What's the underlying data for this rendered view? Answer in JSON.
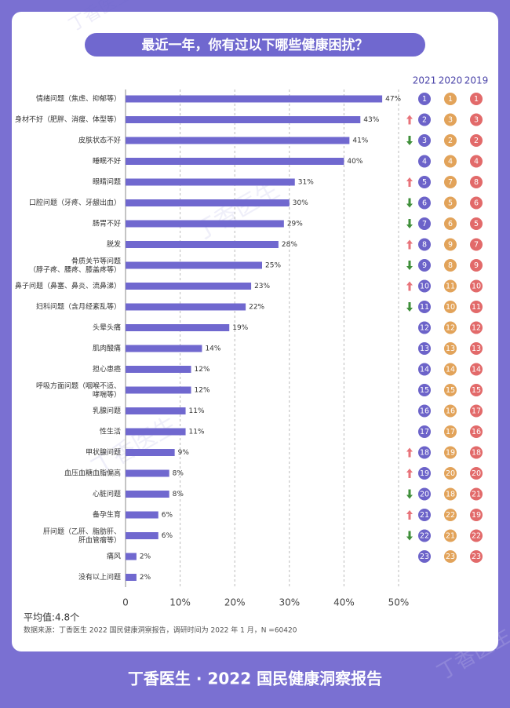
{
  "chart_data": {
    "type": "bar",
    "title": "最近一年，你有过以下哪些健康困扰？",
    "categories": [
      "情绪问题（焦虑、抑郁等）",
      "身材不好（肥胖、消瘦、体型等）",
      "皮肤状态不好",
      "睡眠不好",
      "眼睛问题",
      "口腔问题（牙疼、牙龈出血）",
      "肠胃不好",
      "脱发",
      "骨质关节等问题\n（脖子疼、腰疼、膝盖疼等）",
      "鼻子问题（鼻塞、鼻炎、流鼻涕）",
      "妇科问题（含月经紊乱等）",
      "头晕头痛",
      "肌肉酸痛",
      "担心患癌",
      "呼吸方面问题（咽喉不适、\n哮喘等）",
      "乳腺问题",
      "性生活",
      "甲状腺问题",
      "血压血糖血脂偏高",
      "心脏问题",
      "备孕生育",
      "肝问题（乙肝、脂肪肝、\n肝血管瘤等）",
      "痛风",
      "没有以上问题"
    ],
    "values": [
      47,
      43,
      41,
      40,
      31,
      30,
      29,
      28,
      25,
      23,
      22,
      19,
      14,
      12,
      12,
      11,
      11,
      9,
      8,
      8,
      6,
      6,
      2,
      2
    ],
    "value_labels": [
      "47%",
      "43%",
      "41%",
      "40%",
      "31%",
      "30%",
      "29%",
      "28%",
      "25%",
      "23%",
      "22%",
      "19%",
      "14%",
      "12%",
      "12%",
      "11%",
      "11%",
      "9%",
      "8%",
      "8%",
      "6%",
      "6%",
      "2%",
      "2%"
    ],
    "color": "#7068cf",
    "xlim": [
      0,
      50
    ],
    "xticks": [
      0,
      {
        "value": 10,
        "label": "10%"
      },
      {
        "value": 20,
        "label": "20%"
      },
      {
        "value": 30,
        "label": "30%"
      },
      {
        "value": 40,
        "label": "40%"
      },
      {
        "value": 50,
        "label": "50%"
      }
    ],
    "grid": true,
    "trend": [
      null,
      "up",
      "down",
      null,
      "up",
      "down",
      "down",
      "up",
      "down",
      "up",
      "down",
      null,
      null,
      null,
      null,
      null,
      null,
      "up",
      "up",
      "down",
      "up",
      "down",
      null,
      null
    ],
    "trend_colors": {
      "up": "#e8737a",
      "down": "#3f8f3a"
    },
    "rank_columns": [
      {
        "name": "2021",
        "color": "#6c63c9",
        "values": [
          1,
          2,
          3,
          4,
          5,
          6,
          7,
          8,
          9,
          10,
          11,
          12,
          13,
          14,
          15,
          16,
          17,
          18,
          19,
          20,
          21,
          22,
          23,
          null
        ]
      },
      {
        "name": "2020",
        "color": "#e2a35a",
        "values": [
          1,
          3,
          2,
          4,
          7,
          5,
          6,
          9,
          8,
          11,
          10,
          12,
          13,
          14,
          15,
          16,
          17,
          19,
          20,
          18,
          22,
          21,
          23,
          null
        ]
      },
      {
        "name": "2019",
        "color": "#e26a6a",
        "values": [
          1,
          3,
          2,
          4,
          8,
          6,
          5,
          7,
          9,
          10,
          11,
          12,
          13,
          14,
          15,
          17,
          16,
          18,
          20,
          21,
          19,
          22,
          23,
          null
        ]
      }
    ],
    "average": "平均值:4.8个",
    "source": "数据来源：丁香医生 2022 国民健康洞察报告，调研时间为 2022 年 1 月，N =60420"
  },
  "footer": "丁香医生 · 2022 国民健康洞察报告",
  "watermark": "丁香医生"
}
